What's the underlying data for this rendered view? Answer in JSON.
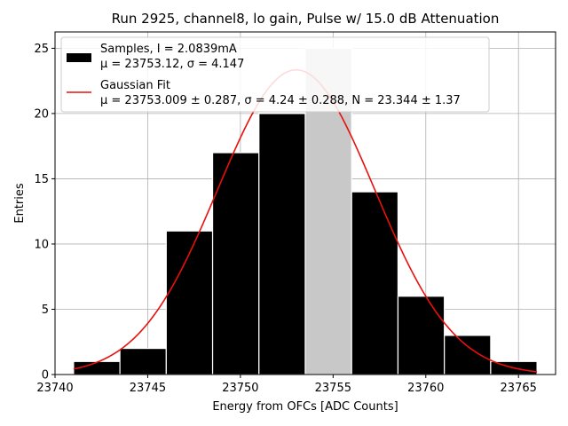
{
  "chart_data": {
    "type": "bar",
    "title": "Run 2925, channel8, lo gain, Pulse w/ 15.0 dB Attenuation",
    "xlabel": "Energy from OFCs [ADC Counts]",
    "ylabel": "Entries",
    "xlim": [
      23740.0,
      23767.0
    ],
    "ylim": [
      0,
      26.25
    ],
    "grid": true,
    "legend_position": "top-left",
    "x_ticks": [
      23740,
      23745,
      23750,
      23755,
      23760,
      23765
    ],
    "y_ticks": [
      0,
      5,
      10,
      15,
      20,
      25
    ],
    "histogram": {
      "name": "Samples, I = 2.0839mA",
      "stats_line": "μ = 23753.12, σ = 4.147",
      "bin_edges": [
        23741.0,
        23743.5,
        23746.0,
        23748.5,
        23751.0,
        23753.5,
        23756.0,
        23758.5,
        23761.0,
        23763.5,
        23766.0
      ],
      "counts": [
        1,
        2,
        11,
        17,
        20,
        25,
        14,
        6,
        3,
        1
      ],
      "highlighted_bin": 5,
      "color": "#000000",
      "highlight_color": "#c8c8c8"
    },
    "fit": {
      "name": "Gaussian Fit",
      "stats_line": "μ = 23753.009 ± 0.287, σ = 4.24 ± 0.288, N = 23.344 ± 1.37",
      "mu": 23753.009,
      "sigma": 4.24,
      "N": 23.344,
      "x_range": [
        23741.0,
        23766.0
      ],
      "color": "#e8100c"
    }
  }
}
